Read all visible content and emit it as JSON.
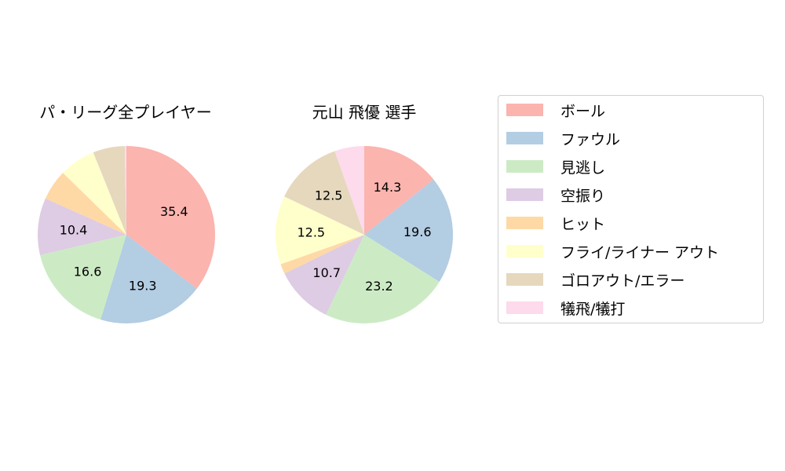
{
  "chart_data": [
    {
      "type": "pie",
      "title": "パ・リーグ全プレイヤー",
      "categories": [
        "ボール",
        "ファウル",
        "見逃し",
        "空振り",
        "ヒット",
        "フライ/ライナー アウト",
        "ゴロアウト/エラー",
        "犠飛/犠打"
      ],
      "values": [
        35.4,
        19.3,
        16.6,
        10.4,
        5.6,
        6.6,
        5.8,
        0.3
      ],
      "labels_shown": [
        "35.4",
        "19.3",
        "16.6",
        "10.4",
        "",
        "",
        "",
        ""
      ],
      "start_angle": 90,
      "direction": "clockwise"
    },
    {
      "type": "pie",
      "title": "元山 飛優  選手",
      "categories": [
        "ボール",
        "ファウル",
        "見逃し",
        "空振り",
        "ヒット",
        "フライ/ライナー アウト",
        "ゴロアウト/エラー",
        "犠飛/犠打"
      ],
      "values": [
        14.3,
        19.6,
        23.2,
        10.7,
        1.8,
        12.5,
        12.5,
        5.4
      ],
      "labels_shown": [
        "14.3",
        "19.6",
        "23.2",
        "10.7",
        "",
        "12.5",
        "12.5",
        ""
      ],
      "start_angle": 90,
      "direction": "clockwise"
    }
  ],
  "titles": {
    "left": "パ・リーグ全プレイヤー",
    "right": "元山 飛優  選手"
  },
  "legend": {
    "position": "right",
    "items": [
      {
        "label": "ボール",
        "color": "#fbb4ae"
      },
      {
        "label": "ファウル",
        "color": "#b3cde3"
      },
      {
        "label": "見逃し",
        "color": "#ccebc5"
      },
      {
        "label": "空振り",
        "color": "#decbe4"
      },
      {
        "label": "ヒット",
        "color": "#fed9a6"
      },
      {
        "label": "フライ/ライナー アウト",
        "color": "#ffffcc"
      },
      {
        "label": "ゴロアウト/エラー",
        "color": "#e5d8bd"
      },
      {
        "label": "犠飛/犠打",
        "color": "#fddaec"
      }
    ]
  }
}
